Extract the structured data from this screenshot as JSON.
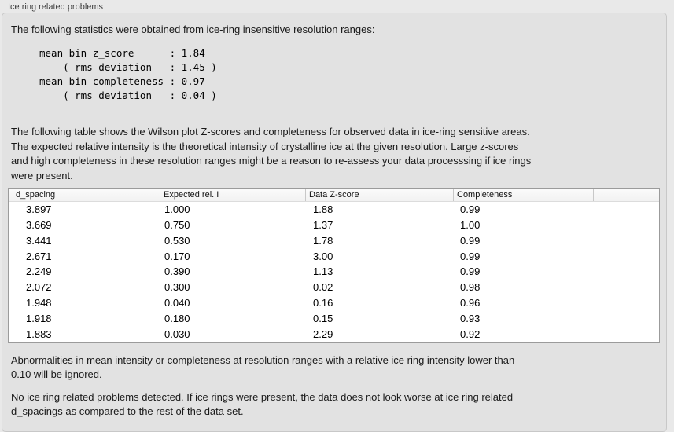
{
  "group": {
    "title": "Ice ring related problems"
  },
  "content": {
    "intro": "The following statistics were obtained from ice-ring insensitive resolution ranges:",
    "stats_block": "mean bin z_score      : 1.84\n    ( rms deviation   : 1.45 )\nmean bin completeness : 0.97\n    ( rms deviation   : 0.04 )",
    "table_description": "The following table shows the Wilson plot Z-scores and completeness for observed data in ice-ring sensitive areas.\nThe expected relative intensity is the theoretical intensity of crystalline ice at the given resolution. Large z-scores\nand high completeness in these resolution ranges might be a reason to re-assess your data processsing if ice rings\nwere present.",
    "abnormalities_note": "Abnormalities in mean intensity or completeness at resolution ranges with a relative ice ring intensity lower than\n0.10 will be ignored.",
    "conclusion": "No ice ring related problems detected. If ice rings were present, the data does not look worse at ice ring related\nd_spacings as compared to the rest of the data set."
  },
  "table": {
    "columns": [
      "d_spacing",
      "Expected rel. I",
      "Data Z-score",
      "Completeness"
    ],
    "rows": [
      [
        "3.897",
        "1.000",
        "1.88",
        "0.99"
      ],
      [
        "3.669",
        "0.750",
        "1.37",
        "1.00"
      ],
      [
        "3.441",
        "0.530",
        "1.78",
        "0.99"
      ],
      [
        "2.671",
        "0.170",
        "3.00",
        "0.99"
      ],
      [
        "2.249",
        "0.390",
        "1.13",
        "0.99"
      ],
      [
        "2.072",
        "0.300",
        "0.02",
        "0.98"
      ],
      [
        "1.948",
        "0.040",
        "0.16",
        "0.96"
      ],
      [
        "1.918",
        "0.180",
        "0.15",
        "0.93"
      ],
      [
        "1.883",
        "0.030",
        "2.29",
        "0.92"
      ]
    ]
  },
  "colors": {
    "outer_background": "#e9e9e9",
    "panel_background": "#e2e2e2",
    "panel_border": "#c8c8c8",
    "table_border": "#9b9b9b",
    "header_separator": "#c8c8c8",
    "text": "#1a1a1a"
  }
}
